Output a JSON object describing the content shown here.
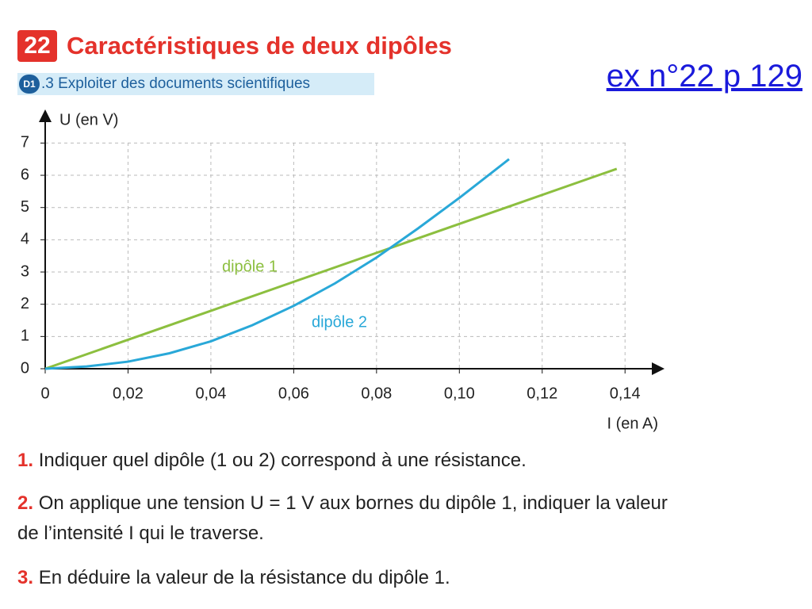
{
  "header": {
    "number": "22",
    "title": "Caractéristiques de deux dipôles",
    "badge": "D1",
    "subtitle": ".3 Exploiter des documents scientifiques"
  },
  "link": "ex n°22 p 129",
  "chart_data": {
    "type": "line",
    "y_label": "U (en V)",
    "x_label": "I (en A)",
    "xlim": [
      0,
      0.148
    ],
    "ylim": [
      0,
      7.6
    ],
    "xticks": [
      0,
      {
        "value": 0.02,
        "label": "0,02"
      },
      {
        "value": 0.04,
        "label": "0,04"
      },
      {
        "value": 0.06,
        "label": "0,06"
      },
      {
        "value": 0.08,
        "label": "0,08"
      },
      {
        "value": 0.1,
        "label": "0,10"
      },
      {
        "value": 0.12,
        "label": "0,12"
      },
      {
        "value": 0.14,
        "label": "0,14"
      }
    ],
    "yticks": [
      0,
      1,
      2,
      3,
      4,
      5,
      6,
      7
    ],
    "grid": true,
    "series": [
      {
        "name": "dipôle 1",
        "color": "#8cbf3f",
        "x": [
          0,
          0.138
        ],
        "values": [
          0,
          6.2
        ]
      },
      {
        "name": "dipôle 2",
        "color": "#29a8d8",
        "x": [
          0,
          0.01,
          0.02,
          0.03,
          0.04,
          0.05,
          0.06,
          0.07,
          0.08,
          0.09,
          0.1,
          0.112
        ],
        "values": [
          0,
          0.07,
          0.22,
          0.48,
          0.85,
          1.35,
          1.95,
          2.65,
          3.45,
          4.35,
          5.3,
          6.5
        ]
      }
    ]
  },
  "questions": [
    {
      "number": "1.",
      "text": "Indiquer quel dipôle (1 ou 2) correspond à une résistance."
    },
    {
      "number": "2.",
      "text": "On applique une tension U = 1 V aux bornes du dipôle 1, indiquer la valeur de l’intensité I qui le traverse."
    },
    {
      "number": "3.",
      "text": "En déduire la valeur de la résistance du dipôle 1."
    }
  ]
}
